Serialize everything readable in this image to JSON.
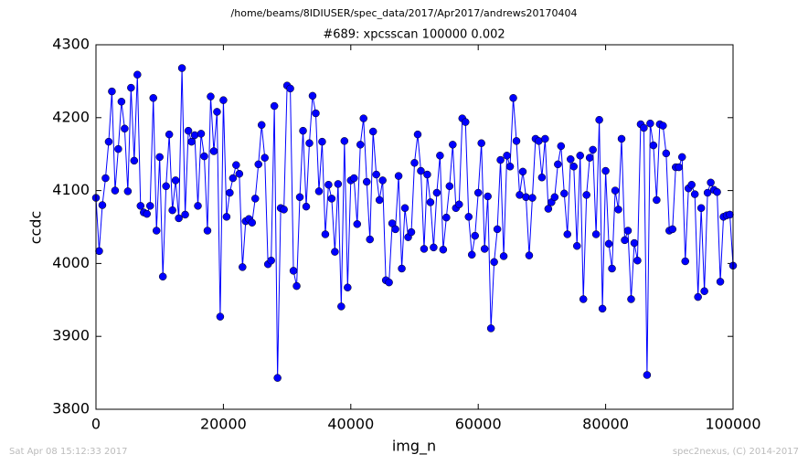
{
  "chart_data": {
    "type": "line",
    "suptitle": "/home/beams/8IDIUSER/spec_data/2017/Apr2017/andrews20170404",
    "title": "#689: xpcsscan 100000 0.002",
    "xlabel": "img_n",
    "ylabel": "ccdc",
    "footer_left": "Sat Apr 08 15:12:33 2017",
    "footer_right": "spec2nexus, (C) 2014-2017",
    "xlim": [
      0,
      100000
    ],
    "xticks": [
      0,
      20000,
      40000,
      60000,
      80000,
      100000
    ],
    "ylim": [
      3800,
      4300
    ],
    "yticks": [
      3800,
      3900,
      4000,
      4100,
      4200,
      4300
    ],
    "x": [
      0,
      500,
      1000,
      1500,
      2000,
      2500,
      3000,
      3500,
      4000,
      4500,
      5000,
      5500,
      6000,
      6500,
      7000,
      7500,
      8000,
      8500,
      9000,
      9500,
      10000,
      10500,
      11000,
      11500,
      12000,
      12500,
      13000,
      13500,
      14000,
      14500,
      15000,
      15500,
      16000,
      16500,
      17000,
      17500,
      18000,
      18500,
      19000,
      19500,
      20000,
      20500,
      21000,
      21500,
      22000,
      22500,
      23000,
      23500,
      24000,
      24500,
      25000,
      25500,
      26000,
      26500,
      27000,
      27500,
      28000,
      28500,
      29000,
      29500,
      30000,
      30500,
      31000,
      31500,
      32000,
      32500,
      33000,
      33500,
      34000,
      34500,
      35000,
      35500,
      36000,
      36500,
      37000,
      37500,
      38000,
      38500,
      39000,
      39500,
      40000,
      40500,
      41000,
      41500,
      42000,
      42500,
      43000,
      43500,
      44000,
      44500,
      45000,
      45500,
      46000,
      46500,
      47000,
      47500,
      48000,
      48500,
      49000,
      49500,
      50000,
      50500,
      51000,
      51500,
      52000,
      52500,
      53000,
      53500,
      54000,
      54500,
      55000,
      55500,
      56000,
      56500,
      57000,
      57500,
      58000,
      58500,
      59000,
      59500,
      60000,
      60500,
      61000,
      61500,
      62000,
      62500,
      63000,
      63500,
      64000,
      64500,
      65000,
      65500,
      66000,
      66500,
      67000,
      67500,
      68000,
      68500,
      69000,
      69500,
      70000,
      70500,
      71000,
      71500,
      72000,
      72500,
      73000,
      73500,
      74000,
      74500,
      75000,
      75500,
      76000,
      76500,
      77000,
      77500,
      78000,
      78500,
      79000,
      79500,
      80000,
      80500,
      81000,
      81500,
      82000,
      82500,
      83000,
      83500,
      84000,
      84500,
      85000,
      85500,
      86000,
      86500,
      87000,
      87500,
      88000,
      88500,
      89000,
      89500,
      90000,
      90500,
      91000,
      91500,
      92000,
      92500,
      93000,
      93500,
      94000,
      94500,
      95000,
      95500,
      96000,
      96500,
      97000,
      97500,
      98000,
      98500,
      99000,
      99500,
      100000
    ],
    "series": [
      {
        "color": "#0000ff",
        "values": [
          4090,
          4017,
          4080,
          4117,
          4167,
          4236,
          4100,
          4157,
          4222,
          4185,
          4099,
          4241,
          4141,
          4259,
          4079,
          4070,
          4068,
          4079,
          4227,
          4045,
          4146,
          3982,
          4106,
          4177,
          4073,
          4114,
          4062,
          4268,
          4067,
          4182,
          4167,
          4176,
          4079,
          4178,
          4147,
          4045,
          4229,
          4154,
          4208,
          3927,
          4224,
          4064,
          4097,
          4117,
          4135,
          4123,
          3995,
          4058,
          4061,
          4056,
          4089,
          4136,
          4190,
          4145,
          3999,
          4004,
          4216,
          3843,
          4076,
          4074,
          4244,
          4240,
          3990,
          3969,
          4091,
          4182,
          4078,
          4165,
          4230,
          4206,
          4099,
          4167,
          4040,
          4108,
          4089,
          4016,
          4109,
          3941,
          4168,
          3967,
          4114,
          4117,
          4054,
          4163,
          4199,
          4112,
          4033,
          4181,
          4122,
          4087,
          4114,
          3977,
          3974,
          4055,
          4047,
          4120,
          3993,
          4076,
          4036,
          4043,
          4138,
          4177,
          4127,
          4020,
          4122,
          4084,
          4022,
          4097,
          4148,
          4019,
          4063,
          4106,
          4163,
          4076,
          4081,
          4199,
          4194,
          4064,
          4012,
          4038,
          4097,
          4165,
          4020,
          4092,
          3911,
          4002,
          4047,
          4142,
          4010,
          4148,
          4133,
          4227,
          4168,
          4094,
          4126,
          4091,
          4011,
          4090,
          4171,
          4168,
          4118,
          4171,
          4075,
          4084,
          4091,
          4136,
          4161,
          4096,
          4040,
          4143,
          4133,
          4024,
          4148,
          3951,
          4094,
          4145,
          4156,
          4040,
          4197,
          3938,
          4127,
          4027,
          3993,
          4100,
          4074,
          4171,
          4032,
          4045,
          3951,
          4028,
          4004,
          4191,
          4186,
          3847,
          4192,
          4162,
          4087,
          4191,
          4189,
          4151,
          4045,
          4047,
          4132,
          4132,
          4146,
          4003,
          4103,
          4108,
          4095,
          3954,
          4076,
          3962,
          4097,
          4111,
          4101,
          4098,
          3975,
          4064,
          4066,
          4067,
          3997
        ]
      }
    ]
  }
}
